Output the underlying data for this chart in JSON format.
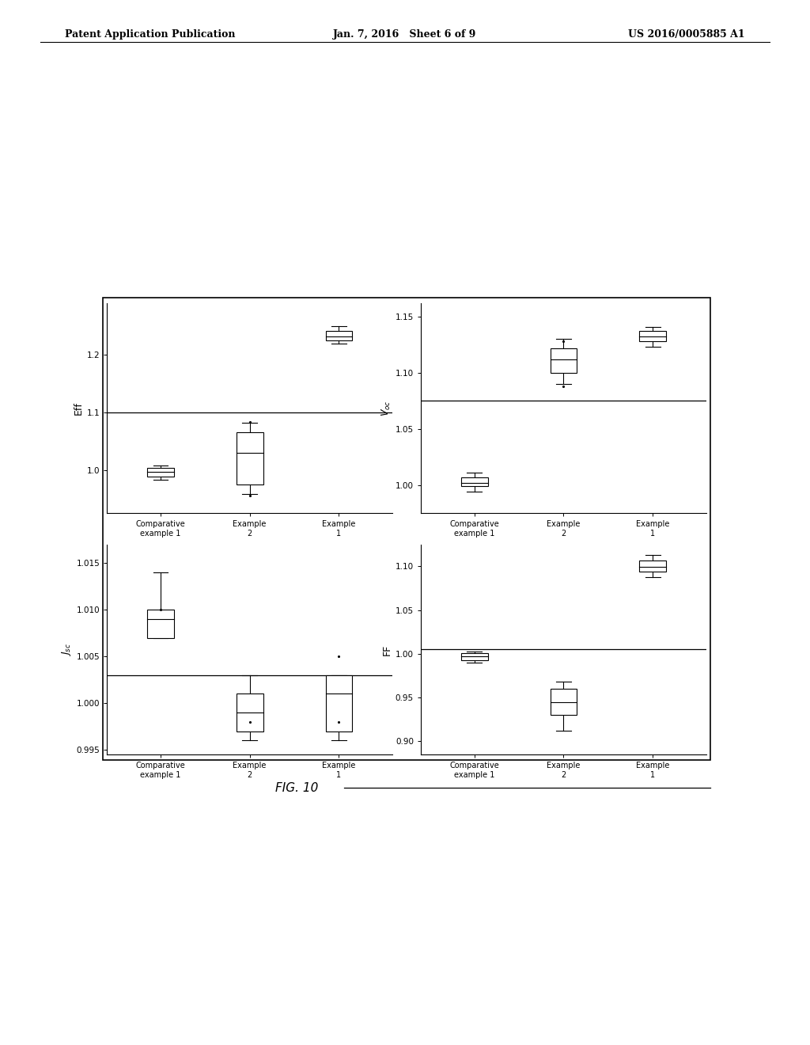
{
  "page_header_left": "Patent Application Publication",
  "page_header_center": "Jan. 7, 2016   Sheet 6 of 9",
  "page_header_right": "US 2016/0005885 A1",
  "fig_label": "FIG. 10",
  "background_color": "#ffffff",
  "plots": [
    {
      "ylabel": "Eff",
      "ylim": [
        0.925,
        1.29
      ],
      "yticks": [
        1.0,
        1.1,
        1.2
      ],
      "hline": 1.1,
      "categories": [
        "Comparative\nexample 1",
        "Example\n2",
        "Example\n1"
      ],
      "boxes": [
        {
          "q1": 0.988,
          "median": 0.997,
          "q3": 1.004,
          "whislo": 0.983,
          "whishi": 1.008,
          "fliers": []
        },
        {
          "q1": 0.975,
          "median": 1.03,
          "q3": 1.065,
          "whislo": 0.958,
          "whishi": 1.082,
          "fliers": [
            0.955,
            1.084
          ]
        },
        {
          "q1": 1.225,
          "median": 1.232,
          "q3": 1.242,
          "whislo": 1.22,
          "whishi": 1.25,
          "fliers": []
        }
      ]
    },
    {
      "ylabel": "V_oc",
      "ylim": [
        0.975,
        1.162
      ],
      "yticks": [
        1.0,
        1.05,
        1.1,
        1.15
      ],
      "hline": 1.075,
      "categories": [
        "Comparative\nexample 1",
        "Example\n2",
        "Example\n1"
      ],
      "boxes": [
        {
          "q1": 0.999,
          "median": 1.002,
          "q3": 1.007,
          "whislo": 0.994,
          "whishi": 1.011,
          "fliers": []
        },
        {
          "q1": 1.1,
          "median": 1.112,
          "q3": 1.122,
          "whislo": 1.09,
          "whishi": 1.13,
          "fliers": [
            1.088,
            1.128
          ]
        },
        {
          "q1": 1.128,
          "median": 1.132,
          "q3": 1.137,
          "whislo": 1.123,
          "whishi": 1.141,
          "fliers": []
        }
      ]
    },
    {
      "ylabel": "J_sc",
      "ylim": [
        0.9945,
        1.017
      ],
      "yticks": [
        0.995,
        1.0,
        1.005,
        1.01,
        1.015
      ],
      "hline": 1.003,
      "categories": [
        "Comparative\nexample 1",
        "Example\n2",
        "Example\n1"
      ],
      "boxes": [
        {
          "q1": 1.007,
          "median": 1.009,
          "q3": 1.01,
          "whislo": 1.007,
          "whishi": 1.014,
          "fliers": [
            1.01
          ]
        },
        {
          "q1": 0.997,
          "median": 0.999,
          "q3": 1.001,
          "whislo": 0.996,
          "whishi": 1.003,
          "fliers": [
            0.998
          ]
        },
        {
          "q1": 0.997,
          "median": 1.001,
          "q3": 1.003,
          "whislo": 0.996,
          "whishi": 1.003,
          "fliers": [
            0.998,
            1.005
          ]
        }
      ]
    },
    {
      "ylabel": "FF",
      "ylim": [
        0.885,
        1.125
      ],
      "yticks": [
        0.9,
        0.95,
        1.0,
        1.05,
        1.1
      ],
      "hline": 1.005,
      "categories": [
        "Comparative\nexample 1",
        "Example\n2",
        "Example\n1"
      ],
      "boxes": [
        {
          "q1": 0.993,
          "median": 0.997,
          "q3": 1.001,
          "whislo": 0.99,
          "whishi": 1.003,
          "fliers": []
        },
        {
          "q1": 0.93,
          "median": 0.945,
          "q3": 0.96,
          "whislo": 0.912,
          "whishi": 0.968,
          "fliers": []
        },
        {
          "q1": 1.094,
          "median": 1.099,
          "q3": 1.107,
          "whislo": 1.088,
          "whishi": 1.113,
          "fliers": []
        }
      ]
    }
  ]
}
